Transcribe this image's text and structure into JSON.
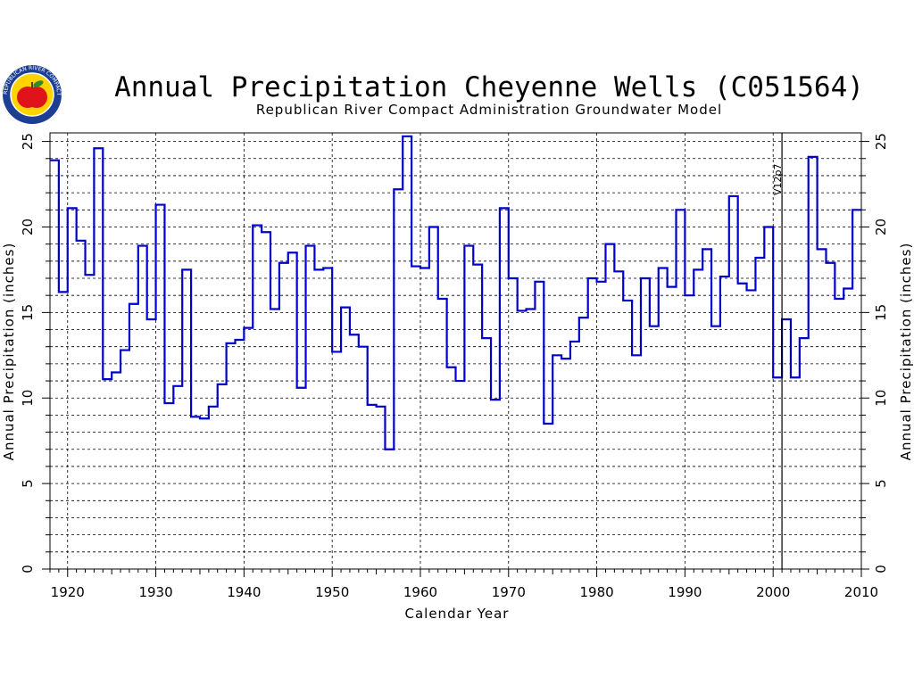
{
  "chart_data": {
    "type": "line",
    "title": "Annual Precipitation Cheyenne Wells (C051564)",
    "subtitle": "Republican River Compact Administration Groundwater Model",
    "xlabel": "Calendar Year",
    "ylabel": "Annual Precipitation (inches)",
    "xlim": [
      1918,
      2010
    ],
    "ylim": [
      0,
      25.5
    ],
    "x_ticks": [
      1920,
      1930,
      1940,
      1950,
      1960,
      1970,
      1980,
      1990,
      2000,
      2010
    ],
    "y_ticks": [
      0,
      5,
      10,
      15,
      20,
      25
    ],
    "grid": true,
    "annotation": {
      "label": "V12p7",
      "x": 2001
    },
    "series": [
      {
        "style": "stepped",
        "color": "#0000cc",
        "x": [
          1918,
          1919,
          1920,
          1921,
          1922,
          1923,
          1924,
          1925,
          1926,
          1927,
          1928,
          1929,
          1930,
          1931,
          1932,
          1933,
          1934,
          1935,
          1936,
          1937,
          1938,
          1939,
          1940,
          1941,
          1942,
          1943,
          1944,
          1945,
          1946,
          1947,
          1948,
          1949,
          1950,
          1951,
          1952,
          1953,
          1954,
          1955,
          1956,
          1957,
          1958,
          1959,
          1960,
          1961,
          1962,
          1963,
          1964,
          1965,
          1966,
          1967,
          1968,
          1969,
          1970,
          1971,
          1972,
          1973,
          1974,
          1975,
          1976,
          1977,
          1978,
          1979,
          1980,
          1981,
          1982,
          1983,
          1984,
          1985,
          1986,
          1987,
          1988,
          1989,
          1990,
          1991,
          1992,
          1993,
          1994,
          1995,
          1996,
          1997,
          1998,
          1999,
          2000,
          2001,
          2002,
          2003,
          2004,
          2005,
          2006,
          2007,
          2008,
          2009
        ],
        "values": [
          23.9,
          16.2,
          21.1,
          19.2,
          17.2,
          24.6,
          11.1,
          11.5,
          12.8,
          15.5,
          18.9,
          14.6,
          21.3,
          9.7,
          10.7,
          17.5,
          8.9,
          8.8,
          9.5,
          10.8,
          13.2,
          13.4,
          14.1,
          20.1,
          19.7,
          15.2,
          17.9,
          18.5,
          10.6,
          18.9,
          17.5,
          17.6,
          12.7,
          15.3,
          13.7,
          13.0,
          9.6,
          9.5,
          7.0,
          22.2,
          25.3,
          17.7,
          17.6,
          20.0,
          15.8,
          11.8,
          11.0,
          18.9,
          17.8,
          13.5,
          9.9,
          21.1,
          17.0,
          15.1,
          15.2,
          16.8,
          8.5,
          12.5,
          12.3,
          13.3,
          14.7,
          17.0,
          16.8,
          19.0,
          17.4,
          15.7,
          12.5,
          17.0,
          14.2,
          17.6,
          16.5,
          21.0,
          16.0,
          17.5,
          18.7,
          14.2,
          17.1,
          21.8,
          16.7,
          16.3,
          18.2,
          20.0,
          11.2,
          14.6,
          11.2,
          13.5,
          24.1,
          18.7,
          17.9,
          15.8,
          16.4,
          21.0
        ]
      }
    ]
  },
  "logo": {
    "name": "RRCA seal",
    "colors": {
      "ring": "#1c3f94",
      "field": "#ffd200",
      "apple": "#e0131b",
      "leaf": "#2e8b2e"
    },
    "text": "REPUBLICAN RIVER COMPACT"
  }
}
